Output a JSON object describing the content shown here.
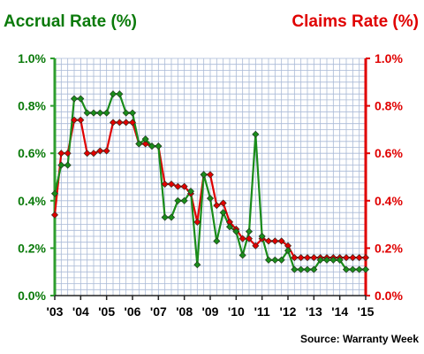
{
  "chart_data": {
    "type": "line",
    "title_left": "Accrual Rate (%)",
    "title_right": "Claims Rate (%)",
    "source": "Source: Warranty Week",
    "y_ticks_left": [
      "0.0%",
      "0.2%",
      "0.4%",
      "0.6%",
      "0.8%",
      "1.0%"
    ],
    "y_ticks_right": [
      "0.0%",
      "0.2%",
      "0.4%",
      "0.6%",
      "0.8%",
      "1.0%"
    ],
    "x_tick_labels": [
      "'03",
      "'04",
      "'05",
      "'06",
      "'07",
      "'08",
      "'09",
      "'10",
      "'11",
      "'12",
      "'13",
      "'14",
      "'15"
    ],
    "ylim": [
      0,
      1.0
    ],
    "xlim": [
      2003,
      2015
    ],
    "grid": true,
    "colors": {
      "accrual": "#1a8c1a",
      "claims": "#e00000",
      "accrual_axis": "#2e9e2e",
      "claims_axis": "#e00000",
      "grid": "#a9b9d6"
    },
    "series": [
      {
        "key": "accrual",
        "x": [
          2003.0,
          2003.25,
          2003.5,
          2003.75,
          2004.0,
          2004.25,
          2004.5,
          2004.75,
          2005.0,
          2005.25,
          2005.5,
          2005.75,
          2006.0,
          2006.25,
          2006.5,
          2006.75,
          2007.0,
          2007.25,
          2007.5,
          2007.75,
          2008.0,
          2008.25,
          2008.5,
          2008.75,
          2009.0,
          2009.25,
          2009.5,
          2009.75,
          2010.0,
          2010.25,
          2010.5,
          2010.75,
          2011.0,
          2011.25,
          2011.5,
          2011.75,
          2012.0,
          2012.25,
          2012.5,
          2012.75,
          2013.0,
          2013.25,
          2013.5,
          2013.75,
          2014.0,
          2014.25,
          2014.5,
          2014.75,
          2015.0
        ],
        "values": [
          0.43,
          0.55,
          0.55,
          0.83,
          0.83,
          0.77,
          0.77,
          0.77,
          0.77,
          0.85,
          0.85,
          0.77,
          0.77,
          0.64,
          0.66,
          0.63,
          0.63,
          0.33,
          0.33,
          0.4,
          0.4,
          0.44,
          0.13,
          0.51,
          0.41,
          0.23,
          0.35,
          0.29,
          0.27,
          0.17,
          0.27,
          0.68,
          0.25,
          0.15,
          0.15,
          0.15,
          0.19,
          0.11,
          0.11,
          0.11,
          0.11,
          0.15,
          0.15,
          0.15,
          0.15,
          0.11,
          0.11,
          0.11,
          0.11
        ]
      },
      {
        "key": "claims",
        "x": [
          2003.0,
          2003.25,
          2003.5,
          2003.75,
          2004.0,
          2004.25,
          2004.5,
          2004.75,
          2005.0,
          2005.25,
          2005.5,
          2005.75,
          2006.0,
          2006.25,
          2006.5,
          2006.75,
          2007.0,
          2007.25,
          2007.5,
          2007.75,
          2008.0,
          2008.25,
          2008.5,
          2008.75,
          2009.0,
          2009.25,
          2009.5,
          2009.75,
          2010.0,
          2010.25,
          2010.5,
          2010.75,
          2011.0,
          2011.25,
          2011.5,
          2011.75,
          2012.0,
          2012.25,
          2012.5,
          2012.75,
          2013.0,
          2013.25,
          2013.5,
          2013.75,
          2014.0,
          2014.25,
          2014.5,
          2014.75,
          2015.0
        ],
        "values": [
          0.34,
          0.6,
          0.6,
          0.74,
          0.74,
          0.6,
          0.6,
          0.61,
          0.61,
          0.73,
          0.73,
          0.73,
          0.73,
          0.64,
          0.64,
          0.63,
          0.63,
          0.47,
          0.47,
          0.46,
          0.46,
          0.43,
          0.31,
          0.51,
          0.51,
          0.38,
          0.39,
          0.31,
          0.28,
          0.24,
          0.24,
          0.21,
          0.24,
          0.23,
          0.23,
          0.23,
          0.21,
          0.16,
          0.16,
          0.16,
          0.16,
          0.16,
          0.16,
          0.16,
          0.16,
          0.16,
          0.16,
          0.16,
          0.16
        ]
      }
    ]
  }
}
